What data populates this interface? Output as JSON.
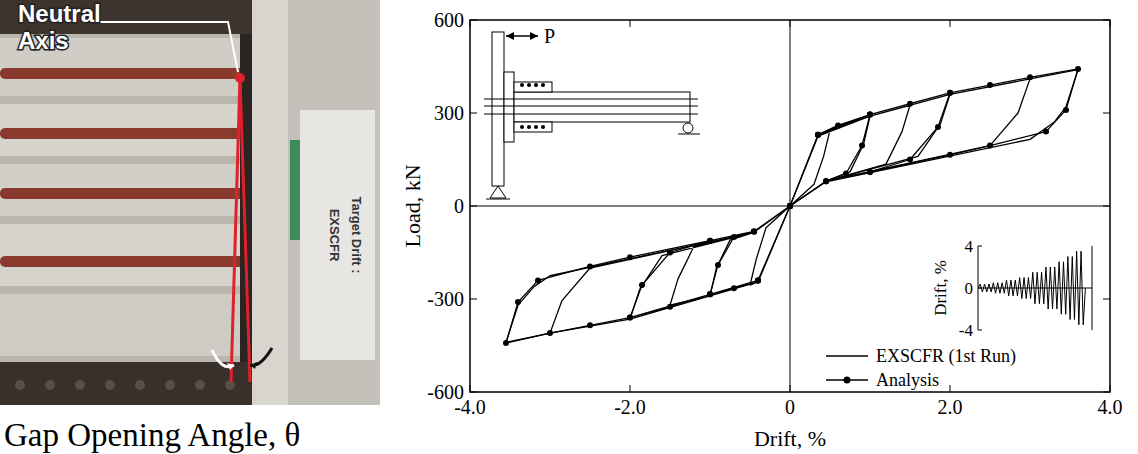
{
  "photo": {
    "label_lines": [
      "Neutral",
      "Axis"
    ],
    "caption": "Gap Opening Angle, θ",
    "sign_lines": [
      "EXSCFR",
      "Target Drift :"
    ]
  },
  "chart_data": [
    {
      "type": "line",
      "x_label": "Drift, %",
      "y_label": "Load, kN",
      "xlim": [
        -4,
        4
      ],
      "ylim": [
        -600,
        600
      ],
      "xticks": [
        {
          "value": -4,
          "label": "-4.0"
        },
        {
          "value": -2,
          "label": "-2.0"
        },
        0,
        {
          "value": 2,
          "label": "2.0"
        },
        {
          "value": 4,
          "label": "4.0"
        }
      ],
      "yticks": [
        -600,
        -300,
        0,
        300,
        600
      ],
      "grid": false,
      "legend": "lower right",
      "annotations": [
        "P"
      ],
      "series": [
        {
          "name": "EXSCFR (1st Run)",
          "color": "#000000",
          "line_style": "solid",
          "marker": "none",
          "x": [
            0,
            0.35,
            0.5,
            0.42,
            0.3,
            0,
            -0.4,
            -0.5,
            -0.42,
            -0.3,
            0,
            0.35,
            0.7,
            1.0,
            0.92,
            0.75,
            0.45,
            0,
            -0.4,
            -0.7,
            -1.0,
            -0.92,
            -0.75,
            -0.45,
            0,
            0.35,
            1.0,
            1.5,
            1.4,
            1.2,
            0.45,
            0,
            -0.4,
            -1.0,
            -1.5,
            -1.4,
            -1.2,
            -0.45,
            0,
            0.35,
            1.0,
            2.0,
            1.88,
            1.6,
            0.45,
            0,
            -0.4,
            -1.0,
            -2.0,
            -1.88,
            -1.6,
            -0.45,
            0,
            0.35,
            1.0,
            2.0,
            3.0,
            2.85,
            2.5,
            0.45,
            0,
            -0.4,
            -1.0,
            -2.0,
            -3.0,
            -2.85,
            -2.5,
            -0.45,
            0,
            0.35,
            1.0,
            2.0,
            3.0,
            3.6,
            3.45,
            3.3,
            3.0,
            0.45,
            0,
            -0.4,
            -1.0,
            -2.0,
            -3.0,
            -3.55,
            -3.4,
            -3.2,
            -3.0,
            -0.45,
            0
          ],
          "values": [
            0,
            225,
            245,
            160,
            70,
            0,
            -245,
            -255,
            -170,
            -70,
            0,
            225,
            265,
            290,
            200,
            110,
            80,
            0,
            -245,
            -265,
            -290,
            -200,
            -110,
            -85,
            0,
            225,
            290,
            325,
            240,
            135,
            80,
            0,
            -245,
            -290,
            -320,
            -235,
            -130,
            -85,
            0,
            225,
            290,
            360,
            265,
            160,
            80,
            0,
            -245,
            -290,
            -365,
            -270,
            -160,
            -85,
            0,
            225,
            290,
            360,
            410,
            300,
            195,
            80,
            0,
            -245,
            -290,
            -365,
            -410,
            -305,
            -200,
            -85,
            0,
            225,
            290,
            360,
            410,
            440,
            320,
            270,
            215,
            78,
            0,
            -245,
            -290,
            -365,
            -410,
            -440,
            -320,
            -260,
            -225,
            -85,
            0
          ]
        },
        {
          "name": "Analysis",
          "color": "#000000",
          "line_style": "solid",
          "marker": "circle",
          "x": [
            0,
            0.35,
            0.6,
            1.0,
            0.9,
            0.7,
            0.45,
            0,
            -0.4,
            -0.7,
            -1.0,
            -0.9,
            -0.7,
            -0.45,
            0,
            0.35,
            1.0,
            1.5,
            2.0,
            1.85,
            1.5,
            1.0,
            0.45,
            0,
            -0.4,
            -1.0,
            -1.5,
            -2.0,
            -1.85,
            -1.5,
            -1.0,
            -0.45,
            0,
            0.35,
            1.0,
            2.0,
            2.5,
            3.0,
            3.6,
            3.45,
            3.2,
            2.5,
            2.0,
            1.0,
            0.45,
            0,
            -0.4,
            -1.0,
            -2.0,
            -2.5,
            -3.0,
            -3.55,
            -3.4,
            -3.15,
            -2.5,
            -2.0,
            -1.0,
            -0.45,
            0
          ],
          "values": [
            0,
            230,
            260,
            295,
            195,
            105,
            80,
            0,
            -240,
            -265,
            -285,
            -190,
            -100,
            -82,
            0,
            230,
            295,
            330,
            365,
            255,
            150,
            110,
            80,
            0,
            -240,
            -285,
            -325,
            -360,
            -255,
            -150,
            -112,
            -82,
            0,
            230,
            295,
            365,
            390,
            415,
            442,
            310,
            240,
            195,
            165,
            110,
            80,
            0,
            -240,
            -285,
            -360,
            -385,
            -410,
            -442,
            -310,
            -240,
            -195,
            -165,
            -112,
            -82,
            0
          ]
        }
      ]
    },
    {
      "type": "line",
      "y_label": "Drift, %",
      "xlim": [
        0,
        52
      ],
      "ylim": [
        -4,
        4
      ],
      "yticks": [
        -4,
        0,
        4
      ],
      "tick_labels": "y",
      "color": "#000000",
      "x": [
        0,
        1,
        2,
        3,
        4,
        5,
        6,
        7,
        8,
        9,
        10,
        11,
        12,
        13,
        14,
        15,
        16,
        17,
        18,
        19,
        20,
        21,
        22,
        23,
        24,
        25,
        26,
        27,
        28,
        29,
        30,
        31,
        32,
        33,
        34,
        35,
        36,
        37,
        38,
        39,
        40,
        41,
        42,
        43,
        44,
        45,
        46,
        47,
        48,
        49
      ],
      "values": [
        0,
        0.375,
        -0.375,
        0.375,
        -0.375,
        0.375,
        -0.375,
        0.5,
        -0.5,
        0.5,
        -0.5,
        0.5,
        -0.5,
        0.75,
        -0.75,
        0.75,
        -0.75,
        0.75,
        -0.75,
        1,
        -1,
        1,
        -1,
        1,
        -1,
        1.5,
        -1.5,
        1.5,
        -1.5,
        1.5,
        -1.5,
        2,
        -2,
        2,
        -2,
        2,
        -2,
        2.5,
        -2.5,
        2.5,
        -2.5,
        3,
        -3,
        3,
        -3,
        3.5,
        -3.5,
        3.5,
        -3.5,
        0
      ]
    }
  ]
}
